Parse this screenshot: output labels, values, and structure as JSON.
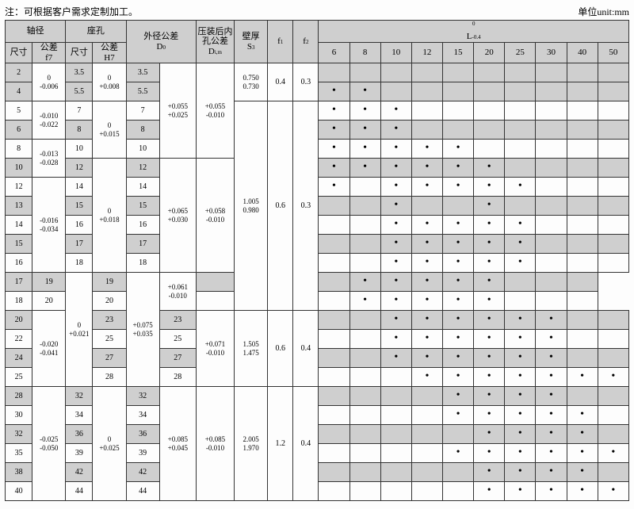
{
  "note_left": "注：可根据客户需求定制加工。",
  "note_right": "单位unit:mm",
  "hdr": {
    "shaft": "轴径",
    "bore": "座孔",
    "D0": "外径公差\nD",
    "D0sub": "0",
    "Dim": "压装后内\n孔公差\nD",
    "Dimsub": "i,m",
    "wall": "壁厚\nS",
    "wallsub": "3",
    "f1": "f",
    "f1sub": "1",
    "f2": "f",
    "f2sub": "2",
    "L": "L",
    "Lsub": "-0.4",
    "Lsup": "0",
    "sz": "尺寸",
    "tol_f7": "公差\nf7",
    "tol_H7": "公差\nH7"
  },
  "Lcols": [
    "6",
    "8",
    "10",
    "12",
    "15",
    "20",
    "25",
    "30",
    "40",
    "50"
  ],
  "tol_f7": [
    "0\n-0.006",
    "-0.010\n-0.022",
    "-0.013\n-0.028",
    "-0.016\n-0.034",
    "-0.020\n-0.041",
    "-0.025\n-0.050"
  ],
  "tol_H7": [
    "0\n+0.008",
    "0\n+0.015",
    "0\n+0.018",
    "0\n+0.021",
    "0\n+0.025"
  ],
  "D0tol": [
    "+0.055\n+0.025",
    "+0.065\n+0.030",
    "+0.075\n+0.035",
    "+0.085\n+0.045"
  ],
  "Dim_tol": [
    "+0.055\n-0.010",
    "+0.058\n-0.010",
    "+0.061\n-0.010",
    "+0.071\n-0.010",
    "+0.085\n-0.010"
  ],
  "S3": [
    "0.750\n0.730",
    "1.005\n0.980",
    "1.505\n1.475",
    "2.005\n1.970"
  ],
  "f1v": [
    "0.4",
    "0.6",
    "0.6",
    "1.2"
  ],
  "f2v": [
    "0.3",
    "0.3",
    "0.4",
    "0.4"
  ],
  "rows": [
    {
      "sh": 1,
      "s": "2",
      "b": "3.5",
      "d": "3.5",
      "dots": [
        0,
        0,
        0,
        0,
        0,
        0,
        0,
        0,
        0,
        0
      ]
    },
    {
      "sh": 1,
      "s": "4",
      "b": "5.5",
      "d": "5.5",
      "dots": [
        1,
        1,
        0,
        0,
        0,
        0,
        0,
        0,
        0,
        0
      ]
    },
    {
      "s": "5",
      "b": "7",
      "d": "7",
      "dots": [
        1,
        1,
        1,
        0,
        0,
        0,
        0,
        0,
        0,
        0
      ]
    },
    {
      "sh": 1,
      "s": "6",
      "b": "8",
      "d": "8",
      "dots": [
        1,
        1,
        1,
        0,
        0,
        0,
        0,
        0,
        0,
        0
      ]
    },
    {
      "s": "8",
      "b": "10",
      "d": "10",
      "dots": [
        1,
        1,
        1,
        1,
        1,
        0,
        0,
        0,
        0,
        0
      ]
    },
    {
      "sh": 1,
      "s": "10",
      "b": "12",
      "d": "12",
      "dots": [
        1,
        1,
        1,
        1,
        1,
        1,
        0,
        0,
        0,
        0
      ]
    },
    {
      "s": "12",
      "b": "14",
      "d": "14",
      "dots": [
        1,
        0,
        1,
        1,
        1,
        1,
        1,
        0,
        0,
        0
      ]
    },
    {
      "sh": 1,
      "s": "13",
      "b": "15",
      "d": "15",
      "dots": [
        0,
        0,
        1,
        0,
        0,
        1,
        0,
        0,
        0,
        0
      ]
    },
    {
      "s": "14",
      "b": "16",
      "d": "16",
      "dots": [
        0,
        0,
        1,
        1,
        1,
        1,
        1,
        0,
        0,
        0
      ]
    },
    {
      "sh": 1,
      "s": "15",
      "b": "17",
      "d": "17",
      "dots": [
        0,
        0,
        1,
        1,
        1,
        1,
        1,
        0,
        0,
        0
      ]
    },
    {
      "s": "16",
      "b": "18",
      "d": "18",
      "dots": [
        0,
        0,
        1,
        1,
        1,
        1,
        1,
        0,
        0,
        0
      ]
    },
    {
      "sh": 1,
      "s": "17",
      "b": "19",
      "d": "19",
      "dots": [
        0,
        0,
        1,
        1,
        1,
        1,
        1,
        0,
        0,
        0
      ]
    },
    {
      "s": "18",
      "b": "20",
      "d": "20",
      "dots": [
        0,
        0,
        1,
        1,
        1,
        1,
        1,
        0,
        0,
        0
      ]
    },
    {
      "sh": 1,
      "s": "20",
      "b": "23",
      "d": "23",
      "dots": [
        0,
        0,
        1,
        1,
        1,
        1,
        1,
        1,
        0,
        0
      ]
    },
    {
      "s": "22",
      "b": "25",
      "d": "25",
      "dots": [
        0,
        0,
        1,
        1,
        1,
        1,
        1,
        1,
        0,
        0
      ]
    },
    {
      "sh": 1,
      "s": "24",
      "b": "27",
      "d": "27",
      "dots": [
        0,
        0,
        1,
        1,
        1,
        1,
        1,
        1,
        0,
        0
      ]
    },
    {
      "s": "25",
      "b": "28",
      "d": "28",
      "dots": [
        0,
        0,
        0,
        1,
        1,
        1,
        1,
        1,
        1,
        1
      ]
    },
    {
      "sh": 1,
      "s": "28",
      "b": "32",
      "d": "32",
      "dots": [
        0,
        0,
        0,
        0,
        1,
        1,
        1,
        1,
        0,
        0
      ]
    },
    {
      "s": "30",
      "b": "34",
      "d": "34",
      "dots": [
        0,
        0,
        0,
        0,
        1,
        1,
        1,
        1,
        1,
        0
      ]
    },
    {
      "sh": 1,
      "s": "32",
      "b": "36",
      "d": "36",
      "dots": [
        0,
        0,
        0,
        0,
        0,
        1,
        1,
        1,
        1,
        0
      ]
    },
    {
      "s": "35",
      "b": "39",
      "d": "39",
      "dots": [
        0,
        0,
        0,
        0,
        1,
        1,
        1,
        1,
        1,
        1
      ]
    },
    {
      "sh": 1,
      "s": "38",
      "b": "42",
      "d": "42",
      "dots": [
        0,
        0,
        0,
        0,
        0,
        1,
        1,
        1,
        1,
        0
      ]
    },
    {
      "s": "40",
      "b": "44",
      "d": "44",
      "dots": [
        0,
        0,
        0,
        0,
        0,
        1,
        1,
        1,
        1,
        1
      ]
    }
  ],
  "style": {
    "shaded": "#cfcfcf",
    "border": "#333",
    "font": "SimSun",
    "fontSize": 10
  }
}
